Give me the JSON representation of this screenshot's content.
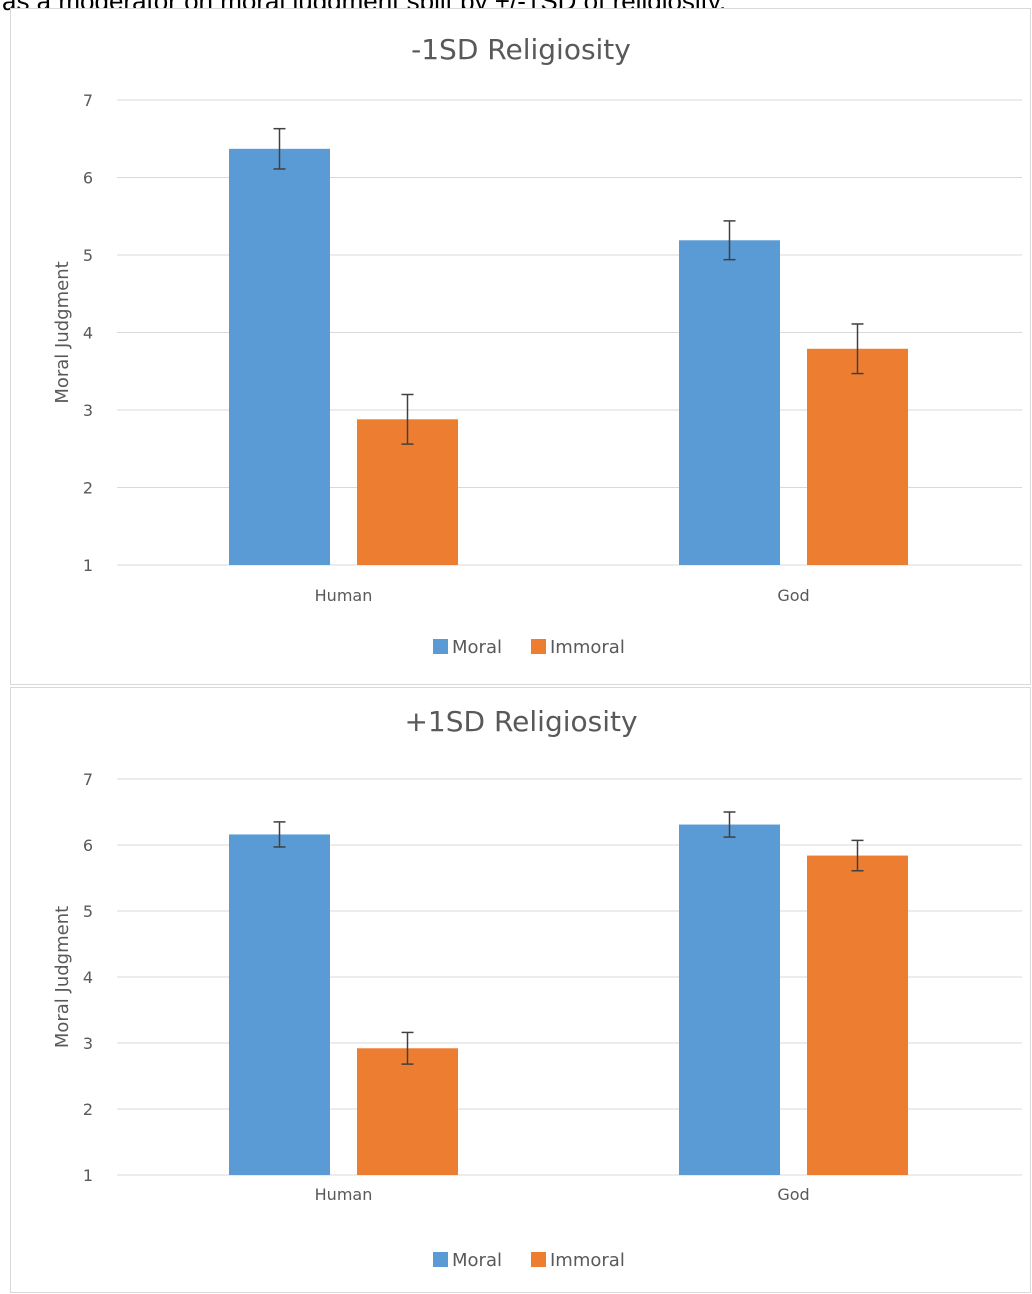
{
  "caption": "as a moderator on moral judgment split by +/-1SD of religiosity.",
  "colors": {
    "moral": "#5b9bd5",
    "immoral": "#ed7d31",
    "grid": "#d9d9d9",
    "errorbar": "#404040"
  },
  "chart_data": [
    {
      "type": "bar",
      "title": "-1SD Religiosity",
      "xlabel": "",
      "ylabel": "Moral Judgment",
      "ylim": [
        1,
        7
      ],
      "yticks": [
        "1",
        "2",
        "3",
        "4",
        "5",
        "6",
        "7"
      ],
      "categories": [
        "Human",
        "God"
      ],
      "series": [
        {
          "name": "Moral",
          "values": [
            6.37,
            5.19
          ],
          "errors": [
            0.26,
            0.25
          ]
        },
        {
          "name": "Immoral",
          "values": [
            2.88,
            3.79
          ],
          "errors": [
            0.32,
            0.32
          ]
        }
      ],
      "grid": true,
      "legend": "bottom"
    },
    {
      "type": "bar",
      "title": "+1SD Religiosity",
      "xlabel": "",
      "ylabel": "Moral Judgment",
      "ylim": [
        1,
        7
      ],
      "yticks": [
        "1",
        "2",
        "3",
        "4",
        "5",
        "6",
        "7"
      ],
      "categories": [
        "Human",
        "God"
      ],
      "series": [
        {
          "name": "Moral",
          "values": [
            6.16,
            6.31
          ],
          "errors": [
            0.19,
            0.19
          ]
        },
        {
          "name": "Immoral",
          "values": [
            2.92,
            5.84
          ],
          "errors": [
            0.24,
            0.23
          ]
        }
      ],
      "grid": true,
      "legend": "bottom"
    }
  ]
}
